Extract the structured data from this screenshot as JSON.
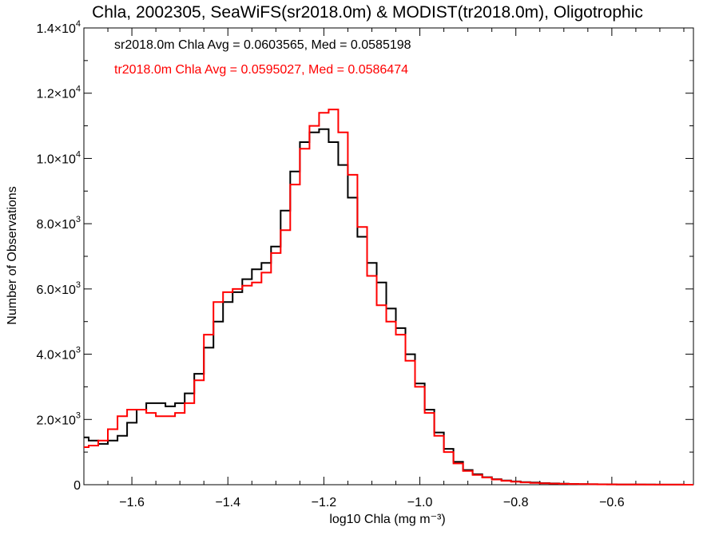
{
  "chart_data": {
    "type": "line",
    "title": "Chla, 2002305, SeaWiFS(sr2018.0m) & MODIST(tr2018.0m), Oligotrophic",
    "xlabel": "log10 Chla (mg m⁻³)",
    "ylabel": "Number of Observations",
    "xlim": [
      -1.7,
      -0.43
    ],
    "ylim": [
      0,
      14000
    ],
    "x_ticks": [
      -1.6,
      -1.4,
      -1.2,
      -1.0,
      -0.8,
      -0.6
    ],
    "x_tick_labels": [
      "−1.6",
      "−1.4",
      "−1.2",
      "−1.0",
      "−0.8",
      "−0.6"
    ],
    "y_ticks": [
      0,
      2000,
      4000,
      6000,
      8000,
      10000,
      12000,
      14000
    ],
    "y_tick_labels": [
      {
        "mant": "0",
        "exp": ""
      },
      {
        "mant": "2.0×10",
        "exp": "3"
      },
      {
        "mant": "4.0×10",
        "exp": "3"
      },
      {
        "mant": "6.0×10",
        "exp": "3"
      },
      {
        "mant": "8.0×10",
        "exp": "3"
      },
      {
        "mant": "1.0×10",
        "exp": "4"
      },
      {
        "mant": "1.2×10",
        "exp": "4"
      },
      {
        "mant": "1.4×10",
        "exp": "4"
      }
    ],
    "grid": false,
    "step": true,
    "annotations": [
      {
        "text": "sr2018.0m Chla Avg = 0.0603565, Med = 0.0585198",
        "color": "#000000"
      },
      {
        "text": "tr2018.0m Chla Avg = 0.0595027, Med = 0.0586474",
        "color": "#ff0000"
      }
    ],
    "series": [
      {
        "color": "#000000",
        "x": [
          -1.7,
          -1.68,
          -1.66,
          -1.64,
          -1.62,
          -1.6,
          -1.58,
          -1.56,
          -1.54,
          -1.52,
          -1.5,
          -1.48,
          -1.46,
          -1.44,
          -1.42,
          -1.4,
          -1.38,
          -1.36,
          -1.34,
          -1.32,
          -1.3,
          -1.28,
          -1.26,
          -1.24,
          -1.22,
          -1.2,
          -1.18,
          -1.16,
          -1.14,
          -1.12,
          -1.1,
          -1.08,
          -1.06,
          -1.04,
          -1.02,
          -1.0,
          -0.98,
          -0.96,
          -0.94,
          -0.92,
          -0.9,
          -0.88,
          -0.86,
          -0.84,
          -0.82,
          -0.8,
          -0.78,
          -0.76,
          -0.74,
          -0.72,
          -0.7,
          -0.68,
          -0.66,
          -0.64,
          -0.62,
          -0.6,
          -0.58,
          -0.56,
          -0.54,
          -0.52,
          -0.5,
          -0.48,
          -0.46,
          -0.44
        ],
        "y": [
          1450,
          1350,
          1250,
          1350,
          1500,
          1900,
          2300,
          2500,
          2500,
          2400,
          2500,
          2800,
          3400,
          4200,
          5000,
          5600,
          5900,
          6300,
          6600,
          6800,
          7300,
          8400,
          9600,
          10500,
          10800,
          10900,
          10500,
          9800,
          8800,
          7600,
          6800,
          6200,
          5400,
          4800,
          4000,
          3100,
          2300,
          1600,
          1100,
          700,
          450,
          320,
          230,
          170,
          130,
          100,
          80,
          65,
          50,
          40,
          30,
          25,
          20,
          15,
          12,
          10,
          8,
          6,
          5,
          4,
          3,
          2,
          2,
          1
        ]
      },
      {
        "color": "#ff0000",
        "x": [
          -1.7,
          -1.68,
          -1.66,
          -1.64,
          -1.62,
          -1.6,
          -1.58,
          -1.56,
          -1.54,
          -1.52,
          -1.5,
          -1.48,
          -1.46,
          -1.44,
          -1.42,
          -1.4,
          -1.38,
          -1.36,
          -1.34,
          -1.32,
          -1.3,
          -1.28,
          -1.26,
          -1.24,
          -1.22,
          -1.2,
          -1.18,
          -1.16,
          -1.14,
          -1.12,
          -1.1,
          -1.08,
          -1.06,
          -1.04,
          -1.02,
          -1.0,
          -0.98,
          -0.96,
          -0.94,
          -0.92,
          -0.9,
          -0.88,
          -0.86,
          -0.84,
          -0.82,
          -0.8,
          -0.78,
          -0.76,
          -0.74,
          -0.72,
          -0.7,
          -0.68,
          -0.66,
          -0.64,
          -0.62,
          -0.6,
          -0.58,
          -0.56,
          -0.54,
          -0.52,
          -0.5,
          -0.48,
          -0.46,
          -0.44
        ],
        "y": [
          1150,
          1200,
          1350,
          1700,
          2100,
          2300,
          2300,
          2200,
          2100,
          2100,
          2200,
          2500,
          3200,
          4600,
          5600,
          5900,
          6000,
          6100,
          6200,
          6500,
          7100,
          7800,
          9200,
          10300,
          11000,
          11400,
          11500,
          10800,
          9500,
          7900,
          6400,
          5500,
          5000,
          4600,
          3800,
          3000,
          2200,
          1500,
          1000,
          650,
          420,
          300,
          220,
          160,
          120,
          90,
          70,
          55,
          45,
          35,
          28,
          22,
          18,
          14,
          11,
          9,
          7,
          5,
          4,
          3,
          3,
          2,
          2,
          1
        ]
      }
    ]
  }
}
